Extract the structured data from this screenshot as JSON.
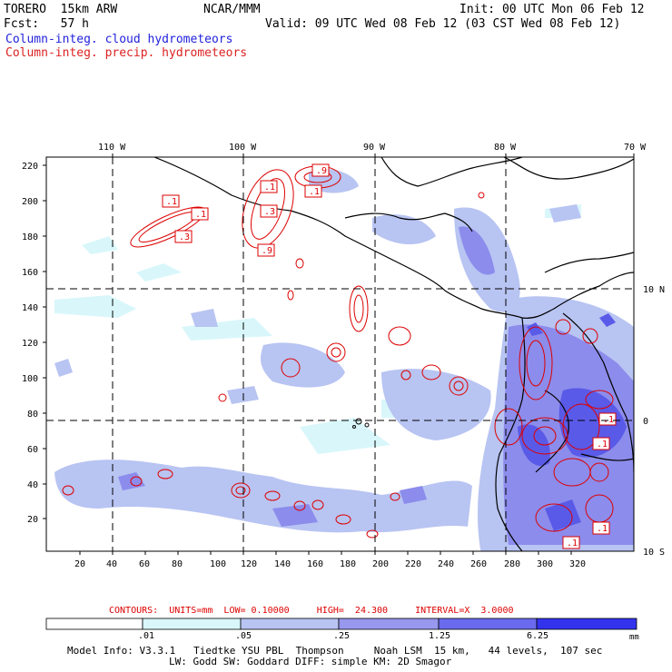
{
  "header": {
    "model": "TORERO  15km ARW",
    "org": "NCAR/MMM",
    "init": "Init: 00 UTC Mon 06 Feb 12",
    "fcst": "Fcst:   57 h",
    "valid": "Valid: 09 UTC Wed 08 Feb 12 (03 CST Wed 08 Feb 12)",
    "field1": "Column-integ. cloud hydrometeors",
    "field2": "Column-integ. precip. hydrometeors"
  },
  "colors": {
    "field1": "#2222dd",
    "field2": "#dd2222",
    "contour": "#dd0000",
    "coast": "#000000"
  },
  "axes": {
    "top_lon": [
      "110 W",
      "100 W",
      "90 W",
      "80 W",
      "70 W"
    ],
    "right_lat": [
      "10 N",
      "0",
      "10 S"
    ],
    "x_ticks": [
      "20",
      "40",
      "60",
      "80",
      "100",
      "120",
      "140",
      "160",
      "180",
      "200",
      "220",
      "240",
      "260",
      "280",
      "300",
      "320"
    ],
    "y_ticks": [
      "20",
      "40",
      "60",
      "80",
      "100",
      "120",
      "140",
      "160",
      "180",
      "200",
      "220"
    ]
  },
  "contour_labels": [
    ".1",
    ".1",
    ".3",
    ".1",
    ".3",
    ".9",
    ".1",
    ".9",
    ".1",
    ".1",
    ".1",
    ".1"
  ],
  "contours_info": {
    "label": "CONTOURS:  UNITS=mm  LOW= 0.10000     HIGH=  24.300     INTERVAL=X  3.0000"
  },
  "colorbar": {
    "thresholds": [
      ".01",
      ".05",
      ".25",
      "1.25",
      "6.25"
    ],
    "unit": "mm",
    "colors": [
      "#ffffff",
      "#d9f7fb",
      "#b8c4f2",
      "#9898ee",
      "#6a6aee",
      "#4444ee",
      "#2222ee"
    ]
  },
  "footer": {
    "line1": "Model Info: V3.3.1   Tiedtke YSU PBL  Thompson     Noah LSM  15 km,   44 levels,  107 sec",
    "line2": "LW: Godd SW: Goddard DIFF: simple KM: 2D Smagor"
  }
}
